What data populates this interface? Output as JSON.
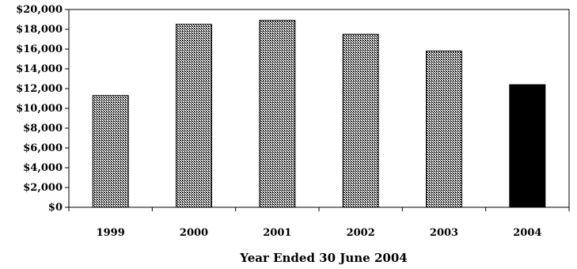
{
  "chart_data": {
    "type": "bar",
    "categories": [
      "1999",
      "2000",
      "2001",
      "2002",
      "2003",
      "2004"
    ],
    "values": [
      11300,
      18500,
      18900,
      17500,
      15800,
      12400
    ],
    "highlight_index": 5,
    "title": "",
    "xlabel": "Year Ended 30 June 2004",
    "ylabel": "",
    "ylim": [
      0,
      20000
    ],
    "y_ticks": [
      0,
      2000,
      4000,
      6000,
      8000,
      10000,
      12000,
      14000,
      16000,
      18000,
      20000
    ],
    "y_tick_labels": [
      "$0",
      "$2,000",
      "$4,000",
      "$6,000",
      "$8,000",
      "$10,000",
      "$12,000",
      "$14,000",
      "$16,000",
      "$18,000",
      "$20,000"
    ],
    "grid": false,
    "legend": "none",
    "colors": {
      "bar_pattern": "#000000",
      "highlight": "#000000",
      "axis": "#000000"
    }
  }
}
